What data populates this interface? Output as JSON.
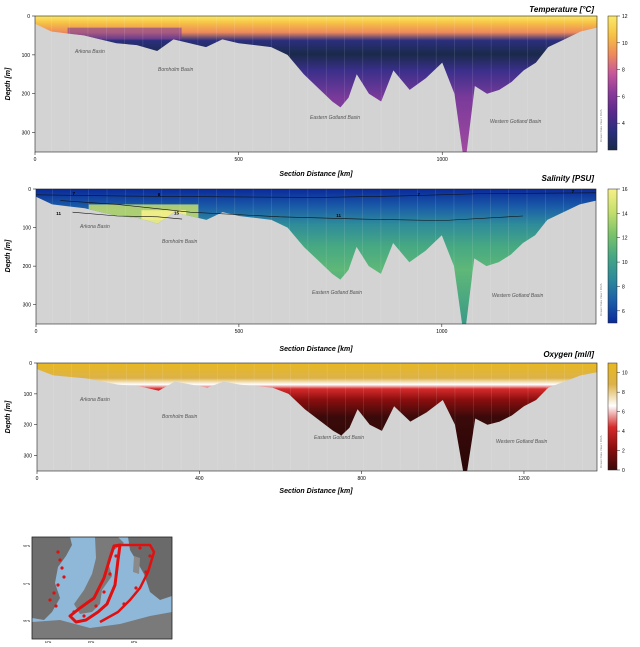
{
  "panels": [
    {
      "id": "temperature",
      "title": "Temperature [°C]",
      "ylabel": "Depth [m]",
      "xlabel": "Section Distance [km]",
      "x_ticks": [
        0,
        500,
        1000
      ],
      "y_ticks": [
        0,
        100,
        200,
        300
      ],
      "colorbar_ticks": [
        12,
        10,
        8,
        6,
        4
      ],
      "basins": [
        "Arkona Basin",
        "Bornholm Basin",
        "Eastern Gotland Basin",
        "Western Gotland Basin"
      ],
      "watermark": "Ocean Data View / DIVA",
      "colors": [
        "#1a2a4a",
        "#2b2f7e",
        "#5a2a8c",
        "#8a3b9a",
        "#c6579b",
        "#ee8a5c",
        "#f6c244",
        "#fbe96a"
      ]
    },
    {
      "id": "salinity",
      "title": "Salinity [PSU]",
      "ylabel": "Depth [m]",
      "xlabel": "Section Distance [km]",
      "x_ticks": [
        0,
        500,
        1000
      ],
      "y_ticks": [
        0,
        100,
        200,
        300
      ],
      "colorbar_ticks": [
        16,
        14,
        12,
        10,
        8,
        6
      ],
      "contour_labels": [
        "7",
        "8",
        "11",
        "15",
        "11",
        "7",
        "7"
      ],
      "basins": [
        "Arkona Basin",
        "Bornholm Basin",
        "Eastern Gotland Basin",
        "Western Gotland Basin"
      ],
      "watermark": "Ocean Data View / DIVA",
      "colors": [
        "#0a2a9a",
        "#1b5fa8",
        "#2e8b9a",
        "#46a883",
        "#7cc46a",
        "#c6e06c",
        "#f6f08a"
      ]
    },
    {
      "id": "oxygen",
      "title": "Oxygen [ml/l]",
      "ylabel": "Depth [m]",
      "xlabel": "Section Distance [km]",
      "x_ticks": [
        0,
        400,
        800,
        1200
      ],
      "y_ticks": [
        0,
        100,
        200,
        300
      ],
      "colorbar_ticks": [
        10,
        8,
        6,
        4,
        2,
        0
      ],
      "basins": [
        "Arkona Basin",
        "Bornholm Basin",
        "Eastern Gotland Basin",
        "Western Gotland Basin"
      ],
      "watermark": "Ocean Data View / DIVA",
      "colors": [
        "#3a0a0a",
        "#8a0e0e",
        "#d62a2a",
        "#ffffff",
        "#dcb24a",
        "#e8b820"
      ]
    }
  ],
  "map": {
    "lat_labels": [
      "59°N",
      "57°N",
      "55°N"
    ],
    "lon_labels": [
      "12°E",
      "15°E",
      "18°E"
    ]
  },
  "chart_data": [
    {
      "type": "heatmap",
      "title": "Temperature [°C]",
      "xlabel": "Section Distance [km]",
      "ylabel": "Depth [m]",
      "xlim": [
        0,
        1380
      ],
      "ylim": [
        350,
        0
      ],
      "zlim": [
        2,
        12
      ],
      "profile": {
        "x": [
          0,
          40,
          80,
          120,
          160,
          200,
          250,
          300,
          340,
          380,
          420,
          460,
          500,
          540,
          580,
          620,
          660,
          700,
          730,
          750,
          770,
          790,
          820,
          850,
          880,
          920,
          960,
          1000,
          1030,
          1050,
          1060,
          1080,
          1110,
          1140,
          1170,
          1200,
          1230,
          1260,
          1300,
          1340,
          1380
        ],
        "depth": [
          20,
          40,
          45,
          50,
          60,
          70,
          75,
          90,
          60,
          70,
          80,
          60,
          70,
          75,
          80,
          100,
          150,
          190,
          220,
          235,
          210,
          150,
          200,
          220,
          140,
          190,
          160,
          120,
          200,
          350,
          350,
          180,
          200,
          190,
          170,
          140,
          120,
          80,
          60,
          40,
          30
        ]
      },
      "layers": [
        {
          "depth": [
            0,
            20
          ],
          "value": 11
        },
        {
          "depth": [
            20,
            40
          ],
          "value": 7
        },
        {
          "depth": [
            40,
            80
          ],
          "value": 4
        },
        {
          "depth": [
            80,
            120
          ],
          "value": 5
        },
        {
          "depth": [
            120,
            350
          ],
          "value": 6
        }
      ]
    },
    {
      "type": "heatmap",
      "title": "Salinity [PSU]",
      "xlabel": "Section Distance [km]",
      "ylabel": "Depth [m]",
      "xlim": [
        0,
        1380
      ],
      "ylim": [
        350,
        0
      ],
      "zlim": [
        5,
        16
      ],
      "layers": [
        {
          "depth": [
            0,
            50
          ],
          "value": 7
        },
        {
          "depth": [
            50,
            100
          ],
          "value": 10
        },
        {
          "depth": [
            100,
            200
          ],
          "value": 12
        },
        {
          "depth": [
            200,
            350
          ],
          "value": 12.5
        }
      ]
    },
    {
      "type": "heatmap",
      "title": "Oxygen [ml/l]",
      "xlabel": "Section Distance [km]",
      "ylabel": "Depth [m]",
      "xlim": [
        0,
        1380
      ],
      "ylim": [
        350,
        0
      ],
      "zlim": [
        0,
        11
      ],
      "layers": [
        {
          "depth": [
            0,
            50
          ],
          "value": 9
        },
        {
          "depth": [
            50,
            70
          ],
          "value": 4
        },
        {
          "depth": [
            70,
            100
          ],
          "value": 1.5
        },
        {
          "depth": [
            100,
            350
          ],
          "value": 0.3
        }
      ]
    }
  ]
}
